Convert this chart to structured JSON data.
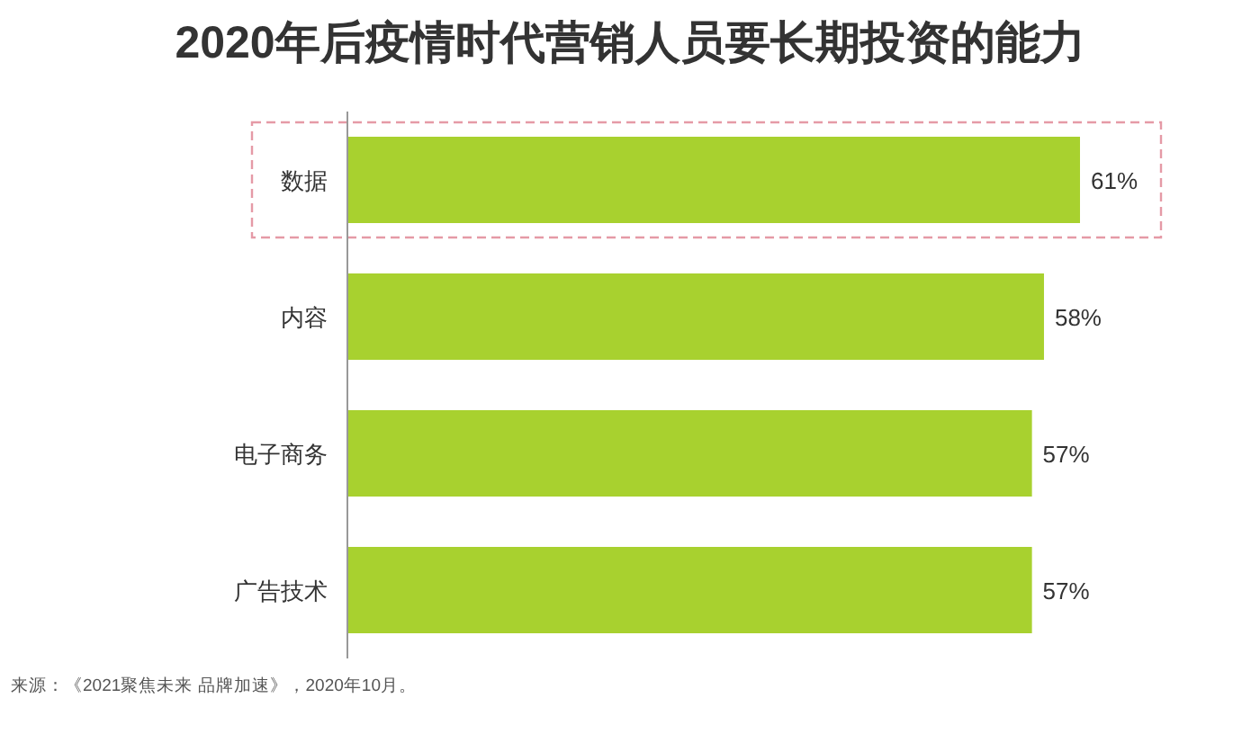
{
  "chart_data": {
    "type": "bar",
    "orientation": "horizontal",
    "title": "2020年后疫情时代营销人员要长期投资的能力",
    "categories": [
      "数据",
      "内容",
      "电子商务",
      "广告技术"
    ],
    "values": [
      61,
      58,
      57,
      57
    ],
    "value_labels": [
      "61%",
      "58%",
      "57%",
      "57%"
    ],
    "color": "#a8d12f",
    "tick_labels": "y",
    "annotations": [
      "来源：《2021聚焦未来 品牌加速》，2020年10月。"
    ]
  }
}
